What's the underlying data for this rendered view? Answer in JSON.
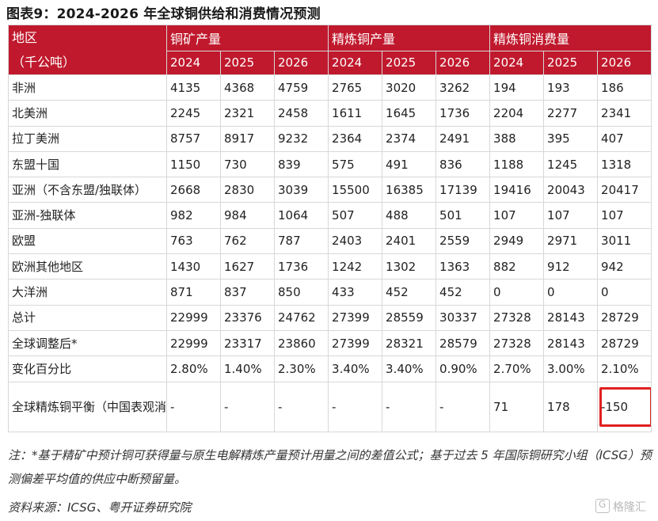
{
  "title": "图表9：2024-2026 年全球铜供给和消费情况预测",
  "header": {
    "region_line1": "地区",
    "region_line2": "（千公吨）",
    "groups": [
      "铜矿产量",
      "精炼铜产量",
      "精炼铜消费量"
    ],
    "years": [
      "2024",
      "2025",
      "2026",
      "2024",
      "2025",
      "2026",
      "2024",
      "2025",
      "2026"
    ]
  },
  "rows": [
    {
      "region": "非洲",
      "values": [
        "4135",
        "4368",
        "4759",
        "2765",
        "3020",
        "3262",
        "194",
        "193",
        "186"
      ]
    },
    {
      "region": "北美洲",
      "values": [
        "2245",
        "2321",
        "2458",
        "1611",
        "1645",
        "1736",
        "2204",
        "2277",
        "2341"
      ]
    },
    {
      "region": "拉丁美洲",
      "values": [
        "8757",
        "8917",
        "9232",
        "2364",
        "2374",
        "2491",
        "388",
        "395",
        "407"
      ]
    },
    {
      "region": "东盟十国",
      "values": [
        "1150",
        "730",
        "839",
        "575",
        "491",
        "836",
        "1188",
        "1245",
        "1318"
      ]
    },
    {
      "region": "亚洲（不含东盟/独联体）",
      "values": [
        "2668",
        "2830",
        "3039",
        "15500",
        "16385",
        "17139",
        "19416",
        "20043",
        "20417"
      ]
    },
    {
      "region": "亚洲-独联体",
      "values": [
        "982",
        "984",
        "1064",
        "507",
        "488",
        "501",
        "107",
        "107",
        "107"
      ]
    },
    {
      "region": "欧盟",
      "values": [
        "763",
        "762",
        "787",
        "2403",
        "2401",
        "2559",
        "2949",
        "2971",
        "3011"
      ]
    },
    {
      "region": "欧洲其他地区",
      "values": [
        "1430",
        "1627",
        "1736",
        "1242",
        "1302",
        "1363",
        "882",
        "912",
        "942"
      ]
    },
    {
      "region": "大洋洲",
      "values": [
        "871",
        "837",
        "850",
        "433",
        "452",
        "452",
        "0",
        "0",
        "0"
      ]
    },
    {
      "region": "总计",
      "values": [
        "22999",
        "23376",
        "24762",
        "27399",
        "28559",
        "30337",
        "27328",
        "28143",
        "28729"
      ]
    },
    {
      "region": "全球调整后*",
      "values": [
        "22999",
        "23317",
        "23860",
        "27399",
        "28321",
        "28579",
        "27328",
        "28143",
        "28729"
      ]
    },
    {
      "region": "变化百分比",
      "values": [
        "2.80%",
        "1.40%",
        "2.30%",
        "3.40%",
        "3.40%",
        "0.90%",
        "2.70%",
        "3.00%",
        "2.10%"
      ]
    },
    {
      "region": "全球精炼铜平衡（中国表观消费量基准）",
      "values": [
        "-",
        "-",
        "-",
        "-",
        "-",
        "-",
        "71",
        "178",
        "-150"
      ]
    }
  ],
  "note": "注：*基于精矿中预计铜可获得量与原生电解精炼产量预计用量之间的差值公式；基于过去 5 年国际铜研究小组（ICSG）预测偏差平均值的供应中断预留量。",
  "source": "资料来源：ICSG、粤开证券研究院",
  "watermark": "格隆汇"
}
